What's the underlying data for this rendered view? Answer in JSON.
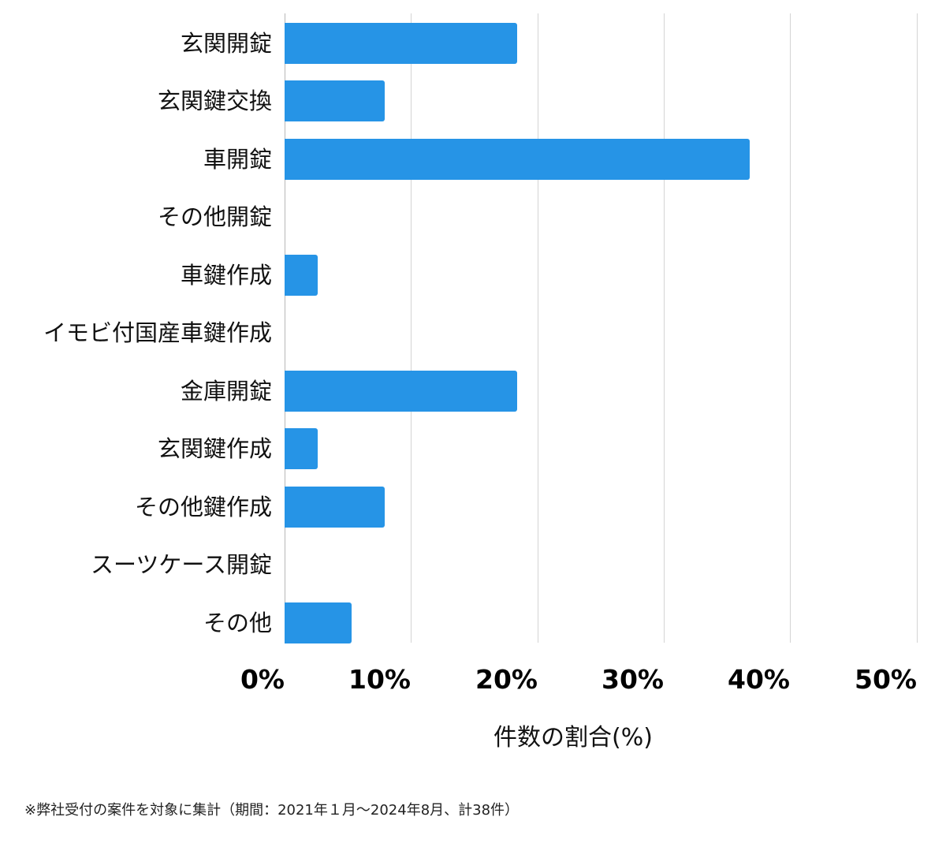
{
  "chart_data": {
    "type": "bar",
    "orientation": "horizontal",
    "title": "",
    "xlabel": "件数の割合(%)",
    "ylabel": "",
    "xlim": [
      0,
      50
    ],
    "x_ticks": [
      "0%",
      "10%",
      "20%",
      "30%",
      "40%",
      "50%"
    ],
    "grid": true,
    "legend": null,
    "bar_color": "#2694e6",
    "categories": [
      "玄関開錠",
      "玄関鍵交換",
      "車開錠",
      "その他開錠",
      "車鍵作成",
      "イモビ付国産車鍵作成",
      "金庫開錠",
      "玄関鍵作成",
      "その他鍵作成",
      "スーツケース開錠",
      "その他"
    ],
    "values": [
      18.4,
      7.9,
      36.8,
      0,
      2.6,
      0,
      18.4,
      2.6,
      7.9,
      0,
      5.3
    ],
    "annotation": "※弊社受付の案件を対象に集計（期間：2021年１月～2024年8月、計38件）"
  },
  "labels": {
    "xlabel": "件数の割合(%)",
    "footnote": "※弊社受付の案件を対象に集計（期間：2021年１月～2024年8月、計38件）"
  }
}
